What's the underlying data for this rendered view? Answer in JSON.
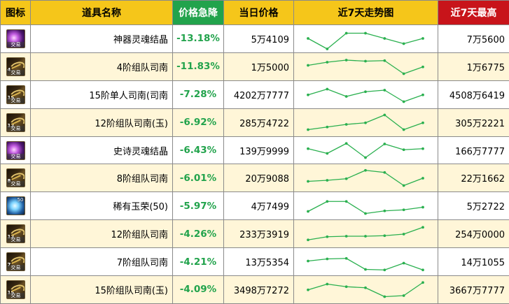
{
  "header": {
    "icon": "图标",
    "name": "道具名称",
    "drop": "价格急降",
    "today": "当日价格",
    "trend": "近7天走势图",
    "high": "近7天最高"
  },
  "colors": {
    "header_bg": "#f5c61a",
    "drop_header_bg": "#22a34c",
    "high_header_bg": "#c8141a",
    "drop_text": "#22a34c",
    "alt_row_bg": "#fff6d8",
    "trend_line": "#2ab04f"
  },
  "rows": [
    {
      "icon": "soul-crystal-icon",
      "icon_type": "soul",
      "level": "",
      "stack": "",
      "trade": "交易",
      "name": "神器灵魂结晶",
      "drop": "-13.18%",
      "price": "5万4109",
      "high": "7万5600",
      "trend": [
        2,
        0,
        3,
        3,
        2,
        1,
        2
      ]
    },
    {
      "icon": "compass-icon",
      "icon_type": "compass",
      "level": "4",
      "stack": "",
      "trade": "交易",
      "name": "4阶组队司南",
      "drop": "-11.83%",
      "price": "1万5000",
      "high": "1万6775",
      "trend": [
        2.2,
        2.8,
        3.2,
        3.0,
        3.1,
        0.6,
        1.9
      ]
    },
    {
      "icon": "compass-icon",
      "icon_type": "compass",
      "level": "15",
      "stack": "",
      "trade": "交易",
      "name": "15阶单人司南(司南",
      "drop": "-7.28%",
      "price": "4202万7777",
      "high": "4508万6419",
      "trend": [
        1.9,
        3.0,
        1.6,
        2.5,
        2.8,
        0.6,
        1.9
      ]
    },
    {
      "icon": "compass-icon",
      "icon_type": "compass",
      "level": "12",
      "stack": "",
      "trade": "交易",
      "name": "12阶组队司南(玉)",
      "drop": "-6.92%",
      "price": "285万4722",
      "high": "305万2221",
      "trend": [
        0.6,
        1.1,
        1.6,
        1.9,
        3.4,
        0.6,
        1.9
      ]
    },
    {
      "icon": "soul-crystal-icon",
      "icon_type": "soul",
      "level": "",
      "stack": "",
      "trade": "交易",
      "name": "史诗灵魂结晶",
      "drop": "-6.43%",
      "price": "139万9999",
      "high": "166万7777",
      "trend": [
        2.3,
        1.4,
        3.3,
        0.6,
        3.2,
        2.1,
        2.3
      ]
    },
    {
      "icon": "compass-icon",
      "icon_type": "compass",
      "level": "8",
      "stack": "",
      "trade": "交易",
      "name": "8阶组队司南",
      "drop": "-6.01%",
      "price": "20万9088",
      "high": "22万1662",
      "trend": [
        1.4,
        1.6,
        1.9,
        3.5,
        3.1,
        0.6,
        2.0
      ]
    },
    {
      "icon": "jade-icon",
      "icon_type": "jade",
      "level": "",
      "stack": "50",
      "trade": "",
      "name": "稀有玉荣(50)",
      "drop": "-5.97%",
      "price": "4万7499",
      "high": "5万2722",
      "trend": [
        1.0,
        2.9,
        2.9,
        0.6,
        1.1,
        1.3,
        1.8
      ]
    },
    {
      "icon": "compass-icon",
      "icon_type": "compass",
      "level": "12",
      "stack": "",
      "trade": "交易",
      "name": "12阶组队司南",
      "drop": "-4.26%",
      "price": "233万3919",
      "high": "254万0000",
      "trend": [
        0.9,
        1.5,
        1.6,
        1.6,
        1.7,
        2.0,
        3.3
      ]
    },
    {
      "icon": "compass-icon",
      "icon_type": "compass",
      "level": "7",
      "stack": "",
      "trade": "交易",
      "name": "7阶组队司南",
      "drop": "-4.21%",
      "price": "13万5354",
      "high": "14万1055",
      "trend": [
        2.2,
        2.6,
        2.7,
        0.6,
        0.5,
        1.8,
        0.5
      ]
    },
    {
      "icon": "compass-icon",
      "icon_type": "compass",
      "level": "15",
      "stack": "",
      "trade": "交易",
      "name": "15阶组队司南(玉)",
      "drop": "-4.09%",
      "price": "3498万7272",
      "high": "3667万7777",
      "trend": [
        1.9,
        3.0,
        2.5,
        2.3,
        0.6,
        0.8,
        3.3
      ]
    }
  ]
}
